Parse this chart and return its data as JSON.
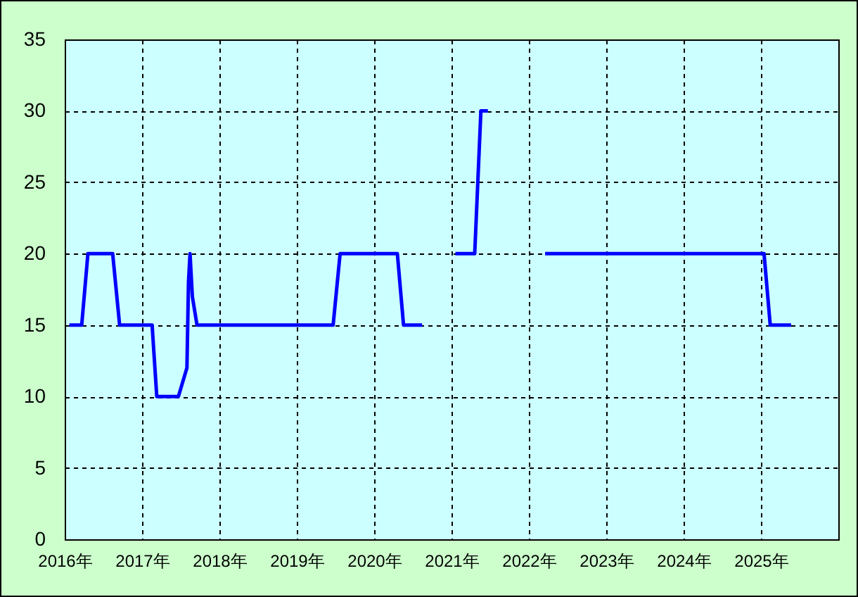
{
  "chart_data": {
    "type": "line",
    "x": [
      2016.06,
      2016.22,
      2016.3,
      2016.62,
      2016.71,
      2017.13,
      2017.19,
      2017.47,
      2017.58,
      2017.6,
      2017.62,
      2017.65,
      2017.71,
      2019.47,
      2019.56,
      2020.3,
      2020.38,
      2020.62,
      2020.8,
      2021.05,
      2021.3,
      2021.38,
      2021.47,
      2021.8,
      2022.21,
      2025.04,
      2025.12,
      2025.39
    ],
    "series": [
      {
        "color": "#0000ff",
        "values": [
          15,
          15,
          20,
          20,
          15,
          15,
          10,
          10,
          12,
          18,
          20,
          17,
          15,
          15,
          20,
          20,
          15,
          15,
          null,
          20,
          20,
          30,
          30,
          null,
          20,
          20,
          15,
          15
        ]
      }
    ],
    "xlim": [
      2016,
      2026
    ],
    "xticks": [
      {
        "value": 2016,
        "label": "2016年"
      },
      {
        "value": 2017,
        "label": "2017年"
      },
      {
        "value": 2018,
        "label": "2018年"
      },
      {
        "value": 2019,
        "label": "2019年"
      },
      {
        "value": 2020,
        "label": "2020年"
      },
      {
        "value": 2021,
        "label": "2021年"
      },
      {
        "value": 2022,
        "label": "2022年"
      },
      {
        "value": 2023,
        "label": "2023年"
      },
      {
        "value": 2024,
        "label": "2024年"
      },
      {
        "value": 2025,
        "label": "2025年"
      }
    ],
    "ylim": [
      0,
      35
    ],
    "yticks": [
      0,
      5,
      10,
      15,
      20,
      25,
      30,
      35
    ],
    "grid": true,
    "marker": "none",
    "line_style": "solid"
  }
}
